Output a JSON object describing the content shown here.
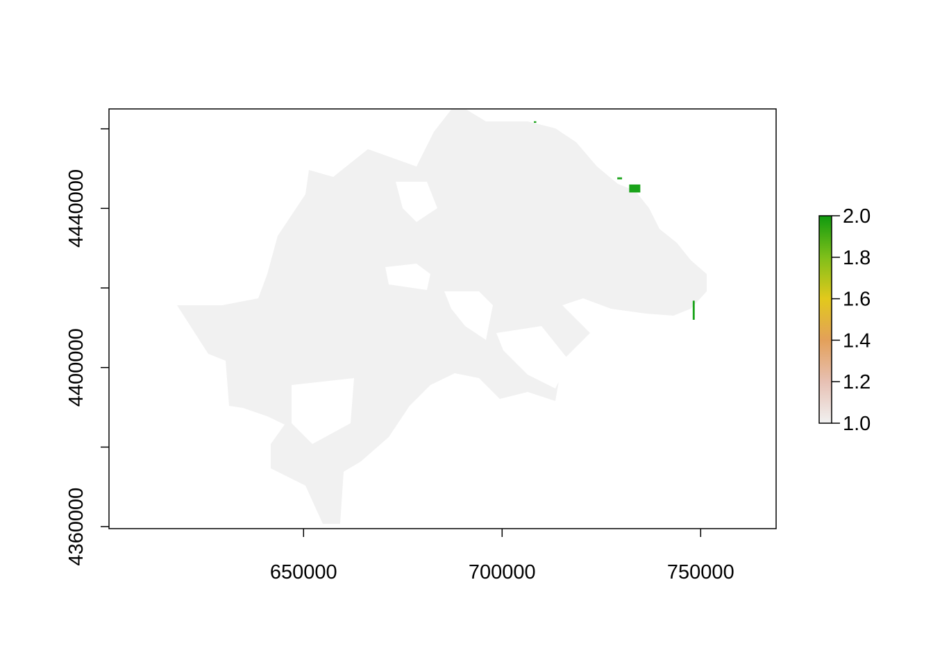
{
  "chart_data": {
    "type": "heatmap",
    "title": "",
    "xlabel": "",
    "ylabel": "",
    "xlim": [
      601000,
      769000
    ],
    "ylim": [
      4359500,
      4465000
    ],
    "grid": false,
    "x_ticks": [
      650000,
      700000,
      750000
    ],
    "x_tick_labels": [
      "650000",
      "700000",
      "750000"
    ],
    "y_ticks": [
      4360000,
      4380000,
      4400000,
      4420000,
      4440000,
      4460000
    ],
    "y_tick_labels": [
      "4360000",
      "",
      "4400000",
      "",
      "4440000",
      ""
    ],
    "raster_values": {
      "base_value": 1.0,
      "base_color": "#f1f1f1",
      "high_value": 2.0,
      "high_color": "#1aa31a",
      "high_value_cells": [
        {
          "x": 708000,
          "y": 4461500,
          "w": 600,
          "h": 400
        },
        {
          "x": 729000,
          "y": 4447300,
          "w": 1200,
          "h": 500
        },
        {
          "x": 732000,
          "y": 4444000,
          "w": 2800,
          "h": 2000
        },
        {
          "x": 748000,
          "y": 4412000,
          "w": 500,
          "h": 4800
        }
      ]
    },
    "legend": {
      "placement": "right",
      "min": 1.0,
      "max": 2.0,
      "ticks": [
        1.0,
        1.2,
        1.4,
        1.6,
        1.8,
        2.0
      ],
      "tick_labels": [
        "1.0",
        "1.2",
        "1.4",
        "1.6",
        "1.8",
        "2.0"
      ],
      "color_stops": [
        "#f1f1f1",
        "#e7c0b3",
        "#e3a05a",
        "#e2c91c",
        "#7fbf1a",
        "#0f9a0f"
      ]
    }
  }
}
